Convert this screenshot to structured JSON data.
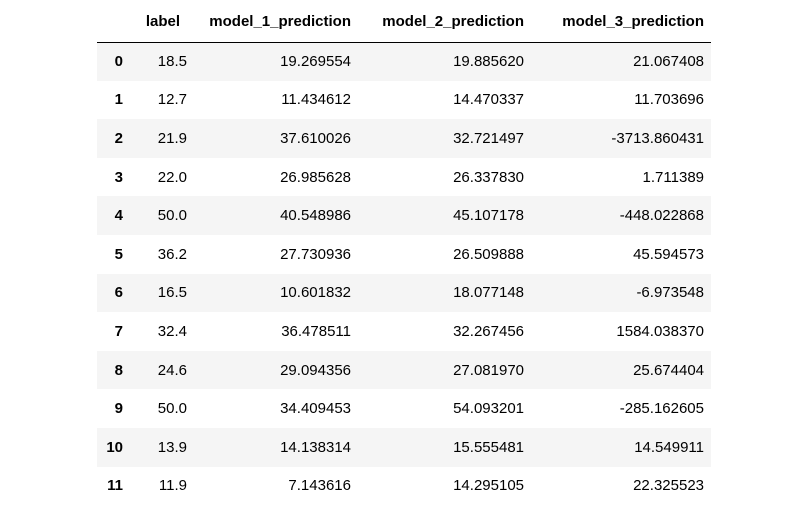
{
  "table": {
    "columns": [
      "",
      "label",
      "model_1_prediction",
      "model_2_prediction",
      "model_3_prediction"
    ],
    "rows": [
      {
        "index": "0",
        "label": "18.5",
        "model_1": "19.269554",
        "model_2": "19.885620",
        "model_3": "21.067408"
      },
      {
        "index": "1",
        "label": "12.7",
        "model_1": "11.434612",
        "model_2": "14.470337",
        "model_3": "11.703696"
      },
      {
        "index": "2",
        "label": "21.9",
        "model_1": "37.610026",
        "model_2": "32.721497",
        "model_3": "-3713.860431"
      },
      {
        "index": "3",
        "label": "22.0",
        "model_1": "26.985628",
        "model_2": "26.337830",
        "model_3": "1.711389"
      },
      {
        "index": "4",
        "label": "50.0",
        "model_1": "40.548986",
        "model_2": "45.107178",
        "model_3": "-448.022868"
      },
      {
        "index": "5",
        "label": "36.2",
        "model_1": "27.730936",
        "model_2": "26.509888",
        "model_3": "45.594573"
      },
      {
        "index": "6",
        "label": "16.5",
        "model_1": "10.601832",
        "model_2": "18.077148",
        "model_3": "-6.973548"
      },
      {
        "index": "7",
        "label": "32.4",
        "model_1": "36.478511",
        "model_2": "32.267456",
        "model_3": "1584.038370"
      },
      {
        "index": "8",
        "label": "24.6",
        "model_1": "29.094356",
        "model_2": "27.081970",
        "model_3": "25.674404"
      },
      {
        "index": "9",
        "label": "50.0",
        "model_1": "34.409453",
        "model_2": "54.093201",
        "model_3": "-285.162605"
      },
      {
        "index": "10",
        "label": "13.9",
        "model_1": "14.138314",
        "model_2": "15.555481",
        "model_3": "14.549911"
      },
      {
        "index": "11",
        "label": "11.9",
        "model_1": "7.143616",
        "model_2": "14.295105",
        "model_3": "22.325523"
      }
    ]
  }
}
